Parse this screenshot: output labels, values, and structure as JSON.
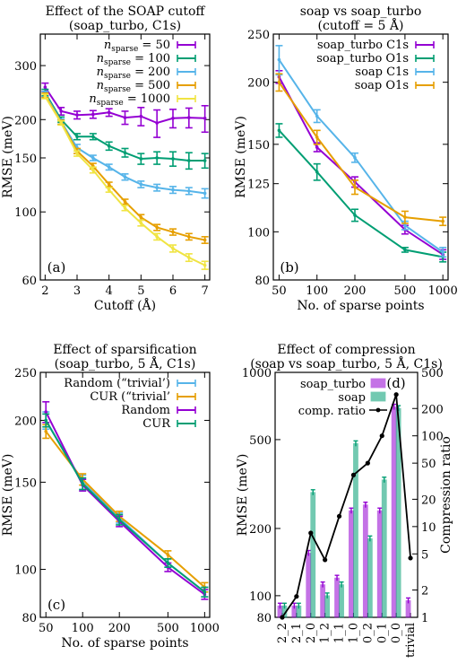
{
  "colors": {
    "purple": "#9400d3",
    "green": "#009e73",
    "lightblue": "#56b4e9",
    "orange": "#e69f00",
    "yellow": "#f0e442",
    "black": "#000000"
  },
  "chart_data": [
    {
      "id": "a",
      "type": "line",
      "title": "Effect of the SOAP cutoff",
      "subtitle": "(soap_turbo, C1s)",
      "panel_label": "(a)",
      "xlabel": "Cutoff (Å)",
      "ylabel": "RMSE (meV)",
      "xscale": "linear",
      "yscale": "log",
      "xlim": [
        1.85,
        7.15
      ],
      "ylim": [
        60,
        380
      ],
      "xticks": [
        2,
        3,
        4,
        5,
        6,
        7
      ],
      "yticks": [
        60,
        100,
        150,
        200,
        300
      ],
      "grid": false,
      "legend_position": "top-right",
      "series": [
        {
          "name": "n_sparse = 50",
          "legend_main": "n",
          "legend_sub": "sparse",
          "legend_rest": " = 50",
          "color": "purple",
          "x": [
            2,
            2.5,
            3,
            3.5,
            4,
            4.5,
            5,
            5.5,
            6,
            6.5,
            7
          ],
          "y": [
            255,
            213,
            207,
            208,
            211,
            203,
            205,
            195,
            202,
            203,
            202
          ],
          "err": [
            8,
            6,
            6,
            6,
            6,
            10,
            14,
            20,
            14,
            15,
            20
          ]
        },
        {
          "name": "n_sparse = 100",
          "legend_main": "n",
          "legend_sub": "sparse",
          "legend_rest": " = 100",
          "color": "green",
          "x": [
            2,
            2.5,
            3,
            3.5,
            4,
            4.5,
            5,
            5.5,
            6,
            6.5,
            7
          ],
          "y": [
            245,
            200,
            176,
            176,
            164,
            156,
            149,
            150,
            149,
            147,
            147
          ],
          "err": [
            6,
            4,
            4,
            4,
            5,
            5,
            6,
            7,
            8,
            9,
            8
          ]
        },
        {
          "name": "n_sparse = 200",
          "legend_main": "n",
          "legend_sub": "sparse",
          "legend_rest": " = 200",
          "color": "lightblue",
          "x": [
            2,
            2.5,
            3,
            3.5,
            4,
            4.5,
            5,
            5.5,
            6,
            6.5,
            7
          ],
          "y": [
            242,
            197,
            162,
            150,
            140,
            130,
            123,
            120,
            118,
            117,
            115
          ],
          "err": [
            5,
            4,
            4,
            3,
            3,
            3,
            3,
            3,
            3,
            3,
            4
          ]
        },
        {
          "name": "n_sparse = 500",
          "legend_main": "n",
          "legend_sub": "sparse",
          "legend_rest": " = 500",
          "color": "orange",
          "x": [
            2,
            2.5,
            3,
            3.5,
            4,
            4.5,
            5,
            5.5,
            6,
            6.5,
            7
          ],
          "y": [
            240,
            196,
            158,
            141,
            123,
            108,
            96,
            89,
            86,
            83,
            81
          ],
          "err": [
            4,
            3,
            3,
            3,
            2,
            2,
            2,
            2,
            2,
            2,
            2
          ]
        },
        {
          "name": "n_sparse = 1000",
          "legend_main": "n",
          "legend_sub": "sparse",
          "legend_rest": " = 1000",
          "color": "yellow",
          "x": [
            2,
            2.5,
            3,
            3.5,
            4,
            4.5,
            5,
            5.5,
            6,
            6.5,
            7
          ],
          "y": [
            238,
            195,
            155,
            137,
            118,
            103,
            92,
            83,
            76,
            71,
            67
          ],
          "err": [
            4,
            3,
            3,
            3,
            2,
            2,
            2,
            2,
            2,
            2,
            2
          ]
        }
      ]
    },
    {
      "id": "b",
      "type": "line",
      "title": "soap vs soap_turbo",
      "subtitle": "(cutoff = 5 Å)",
      "panel_label": "(b)",
      "xlabel": "No. of sparse points",
      "ylabel": "RMSE (meV)",
      "xscale": "log",
      "yscale": "log",
      "xlim": [
        45,
        1100
      ],
      "ylim": [
        80,
        250
      ],
      "xticks": [
        50,
        100,
        200,
        500,
        1000
      ],
      "yticks": [
        80,
        100,
        125,
        150,
        200,
        250
      ],
      "grid": false,
      "legend_position": "top-right",
      "series": [
        {
          "name": "soap_turbo C1s",
          "color": "purple",
          "x": [
            50,
            100,
            200,
            500,
            1000
          ],
          "y": [
            205,
            148,
            126,
            101,
            90
          ],
          "err": [
            6,
            3,
            3,
            2,
            2
          ]
        },
        {
          "name": "soap_turbo O1s",
          "color": "green",
          "x": [
            50,
            100,
            200,
            500,
            1000
          ],
          "y": [
            160,
            132,
            108,
            92,
            89
          ],
          "err": [
            5,
            5,
            3,
            1,
            2
          ]
        },
        {
          "name": "soap C1s",
          "color": "lightblue",
          "x": [
            50,
            100,
            200,
            500,
            1000
          ],
          "y": [
            222,
            171,
            141,
            103,
            91
          ],
          "err": [
            15,
            5,
            3,
            2,
            2
          ]
        },
        {
          "name": "soap O1s",
          "color": "orange",
          "x": [
            50,
            100,
            200,
            500,
            1000
          ],
          "y": [
            200,
            155,
            123,
            107,
            105
          ],
          "err": [
            8,
            5,
            4,
            3,
            2
          ]
        }
      ]
    },
    {
      "id": "c",
      "type": "line",
      "title": "Effect of sparsification",
      "subtitle": "(soap_turbo, 5 Å, C1s)",
      "panel_label": "(c)",
      "xlabel": "No. of sparse points",
      "ylabel": "RMSE (meV)",
      "xscale": "log",
      "yscale": "log",
      "xlim": [
        45,
        1100
      ],
      "ylim": [
        80,
        250
      ],
      "xticks": [
        50,
        100,
        200,
        500,
        1000
      ],
      "yticks": [
        80,
        100,
        150,
        200,
        250
      ],
      "grid": false,
      "legend_position": "top-left",
      "series": [
        {
          "name": "Random (“trivial’)",
          "color": "lightblue",
          "x": [
            50,
            100,
            200,
            500,
            1000
          ],
          "y": [
            200,
            150,
            127,
            103,
            90
          ],
          "err": [
            8,
            5,
            3,
            2,
            2
          ]
        },
        {
          "name": "CUR (“trivial’",
          "color": "orange",
          "x": [
            50,
            100,
            200,
            500,
            1000
          ],
          "y": [
            190,
            152,
            128,
            107,
            92
          ],
          "err": [
            6,
            4,
            3,
            2,
            2
          ]
        },
        {
          "name": "Random",
          "color": "purple",
          "x": [
            50,
            100,
            200,
            500,
            1000
          ],
          "y": [
            208,
            148,
            125,
            101,
            89
          ],
          "err": [
            10,
            4,
            3,
            2,
            2
          ]
        },
        {
          "name": "CUR",
          "color": "green",
          "x": [
            50,
            100,
            200,
            500,
            1000
          ],
          "y": [
            200,
            149,
            126,
            103,
            90
          ],
          "err": [
            6,
            4,
            3,
            2,
            2
          ]
        }
      ]
    },
    {
      "id": "d",
      "type": "bar",
      "title": "Effect of compression",
      "subtitle": "(soap vs soap_turbo, 5 Å, C1s)",
      "panel_label": "(d)",
      "ylabel": "RMSE (meV)",
      "y2label": "Compression ratio",
      "yscale": "log",
      "y2scale": "log",
      "ylim": [
        80,
        1000
      ],
      "y2lim": [
        1,
        500
      ],
      "yticks": [
        80,
        100,
        200,
        500,
        1000
      ],
      "y2ticks": [
        1,
        2,
        5,
        10,
        20,
        50,
        100,
        200,
        500
      ],
      "grid": false,
      "legend_position": "top-left",
      "categories": [
        "2_2",
        "2_1",
        "2_0",
        "1_2",
        "1_1",
        "1_0",
        "0_2",
        "0_1",
        "0_0",
        "trivial"
      ],
      "series": [
        {
          "name": "soap_turbo",
          "color": "purple",
          "kind": "bar",
          "values": [
            90,
            90,
            155,
            112,
            120,
            240,
            255,
            240,
            700,
            95
          ]
        },
        {
          "name": "soap",
          "color": "green",
          "kind": "bar",
          "values": [
            90,
            90,
            290,
            100,
            112,
            480,
            180,
            330,
            690,
            null
          ]
        },
        {
          "name": "comp. ratio",
          "color": "black",
          "kind": "line",
          "axis": "y2",
          "values": [
            1,
            1.7,
            8.5,
            4.3,
            13,
            37,
            50,
            100,
            285,
            4.5
          ]
        }
      ]
    }
  ]
}
